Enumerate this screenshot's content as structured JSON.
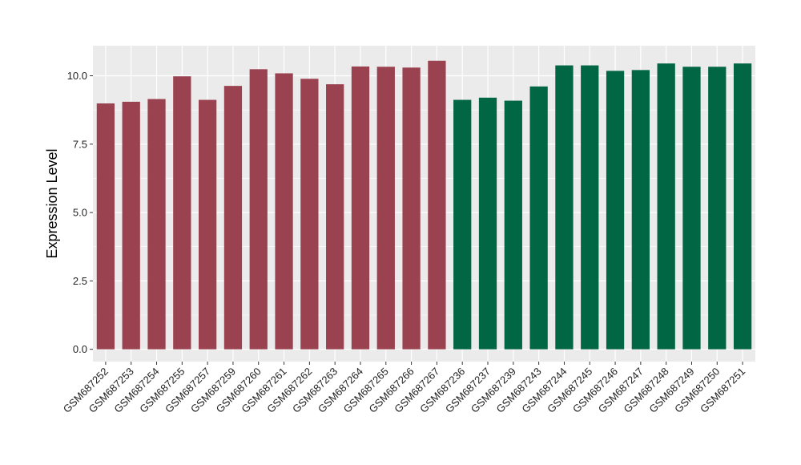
{
  "chart_data": {
    "type": "bar",
    "title": "",
    "xlabel": "",
    "ylabel": "Expression Level",
    "ylim": [
      -0.45,
      11.1
    ],
    "yticks": [
      0.0,
      2.5,
      5.0,
      7.5,
      10.0
    ],
    "ytick_labels": [
      "0.0",
      "2.5",
      "5.0",
      "7.5",
      "10.0"
    ],
    "grid": true,
    "legend": "none",
    "panel_background": "#EBEBEB",
    "grid_major_color": "#FFFFFF",
    "groups": [
      {
        "color": "#9B4250",
        "count": 14
      },
      {
        "color": "#006644",
        "count": 12
      }
    ],
    "categories": [
      "GSM687252",
      "GSM687253",
      "GSM687254",
      "GSM687255",
      "GSM687257",
      "GSM687259",
      "GSM687260",
      "GSM687261",
      "GSM687262",
      "GSM687263",
      "GSM687264",
      "GSM687265",
      "GSM687266",
      "GSM687267",
      "GSM687236",
      "GSM687237",
      "GSM687239",
      "GSM687243",
      "GSM687244",
      "GSM687245",
      "GSM687246",
      "GSM687247",
      "GSM687248",
      "GSM687249",
      "GSM687250",
      "GSM687251"
    ],
    "values": [
      8.99,
      9.05,
      9.15,
      9.98,
      9.12,
      9.63,
      10.24,
      10.09,
      9.89,
      9.69,
      10.34,
      10.33,
      10.3,
      10.55,
      9.12,
      9.2,
      9.09,
      9.61,
      10.38,
      10.38,
      10.18,
      10.21,
      10.45,
      10.33,
      10.33,
      10.45
    ]
  }
}
